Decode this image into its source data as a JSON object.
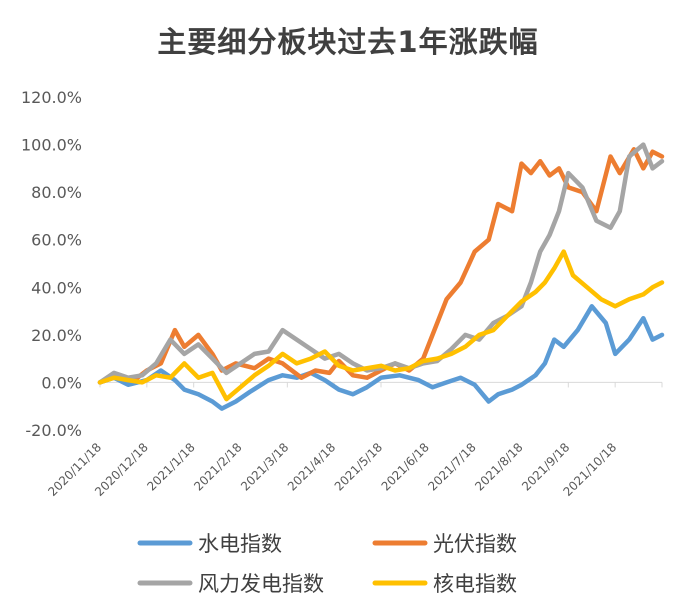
{
  "chart_data": {
    "type": "line",
    "title": "主要细分板块过去1年涨跌幅",
    "xlabel": "",
    "ylabel": "",
    "ylim": [
      -20,
      120
    ],
    "y_ticks": [
      "-20.0%",
      "0.0%",
      "20.0%",
      "40.0%",
      "60.0%",
      "80.0%",
      "100.0%",
      "120.0%"
    ],
    "y_tick_values": [
      -20,
      0,
      20,
      40,
      60,
      80,
      100,
      120
    ],
    "categories": [
      "2020/11/18",
      "2020/12/18",
      "2021/1/18",
      "2021/2/18",
      "2021/3/18",
      "2021/4/18",
      "2021/5/18",
      "2021/6/18",
      "2021/7/18",
      "2021/8/18",
      "2021/9/18",
      "2021/10/18"
    ],
    "x_index_range": [
      0,
      12
    ],
    "legend_position": "bottom",
    "series": [
      {
        "name": "水电指数",
        "color": "#5b9bd5",
        "x": [
          0,
          0.3,
          0.6,
          1.0,
          1.3,
          1.6,
          1.8,
          2.1,
          2.4,
          2.6,
          2.9,
          3.2,
          3.6,
          3.9,
          4.2,
          4.5,
          4.8,
          5.1,
          5.4,
          5.7,
          6.0,
          6.4,
          6.8,
          7.1,
          7.4,
          7.7,
          8.0,
          8.3,
          8.5,
          8.8,
          9.0,
          9.3,
          9.5,
          9.7,
          9.9,
          10.2,
          10.5,
          10.8,
          11.0,
          11.3,
          11.6,
          11.8,
          12.0
        ],
        "values": [
          0,
          2,
          -1,
          1,
          5,
          1,
          -3,
          -5,
          -8,
          -11,
          -8,
          -4,
          1,
          3,
          2,
          4,
          1,
          -3,
          -5,
          -2,
          2,
          3,
          1,
          -2,
          0,
          2,
          -1,
          -8,
          -5,
          -3,
          -1,
          3,
          8,
          18,
          15,
          22,
          32,
          25,
          12,
          18,
          27,
          18,
          20
        ]
      },
      {
        "name": "光伏指数",
        "color": "#ed7d31",
        "x": [
          0,
          0.3,
          0.6,
          0.8,
          1.0,
          1.3,
          1.6,
          1.8,
          2.1,
          2.4,
          2.6,
          2.9,
          3.3,
          3.6,
          3.9,
          4.3,
          4.6,
          4.9,
          5.1,
          5.4,
          5.7,
          6.0,
          6.3,
          6.6,
          6.9,
          7.1,
          7.4,
          7.7,
          8.0,
          8.3,
          8.5,
          8.8,
          9.0,
          9.2,
          9.4,
          9.6,
          9.8,
          10.0,
          10.3,
          10.6,
          10.9,
          11.1,
          11.4,
          11.6,
          11.8,
          12.0
        ],
        "values": [
          0,
          3,
          1,
          2,
          5,
          8,
          22,
          15,
          20,
          12,
          5,
          8,
          6,
          10,
          8,
          2,
          5,
          4,
          9,
          3,
          2,
          5,
          8,
          5,
          10,
          20,
          35,
          42,
          55,
          60,
          75,
          72,
          92,
          88,
          93,
          87,
          90,
          82,
          80,
          72,
          95,
          88,
          98,
          90,
          97,
          95
        ]
      },
      {
        "name": "风力发电指数",
        "color": "#a5a5a5",
        "x": [
          0,
          0.3,
          0.6,
          0.9,
          1.2,
          1.5,
          1.8,
          2.1,
          2.4,
          2.7,
          3.0,
          3.3,
          3.6,
          3.9,
          4.2,
          4.5,
          4.8,
          5.1,
          5.4,
          5.7,
          6.0,
          6.3,
          6.6,
          6.9,
          7.2,
          7.5,
          7.8,
          8.1,
          8.4,
          8.7,
          9.0,
          9.2,
          9.4,
          9.6,
          9.8,
          10.0,
          10.3,
          10.6,
          10.9,
          11.1,
          11.3,
          11.6,
          11.8,
          12.0
        ],
        "values": [
          0,
          4,
          2,
          3,
          8,
          18,
          12,
          16,
          10,
          4,
          8,
          12,
          13,
          22,
          18,
          14,
          10,
          12,
          8,
          5,
          6,
          8,
          6,
          8,
          9,
          14,
          20,
          18,
          25,
          28,
          32,
          42,
          55,
          62,
          72,
          88,
          82,
          68,
          65,
          72,
          95,
          100,
          90,
          93
        ]
      },
      {
        "name": "核电指数",
        "color": "#ffc000",
        "x": [
          0,
          0.3,
          0.6,
          0.9,
          1.2,
          1.5,
          1.8,
          2.1,
          2.4,
          2.7,
          3.0,
          3.3,
          3.6,
          3.9,
          4.2,
          4.5,
          4.8,
          5.1,
          5.4,
          5.7,
          6.0,
          6.3,
          6.6,
          6.9,
          7.2,
          7.5,
          7.8,
          8.1,
          8.4,
          8.7,
          9.0,
          9.3,
          9.5,
          9.7,
          9.9,
          10.1,
          10.4,
          10.7,
          11.0,
          11.3,
          11.6,
          11.8,
          12.0
        ],
        "values": [
          0,
          2,
          1,
          0,
          3,
          2,
          8,
          2,
          4,
          -7,
          -2,
          3,
          7,
          12,
          8,
          10,
          13,
          7,
          5,
          6,
          7,
          5,
          6,
          9,
          10,
          12,
          15,
          20,
          22,
          28,
          34,
          38,
          42,
          48,
          55,
          45,
          40,
          35,
          32,
          35,
          37,
          40,
          42
        ]
      }
    ]
  }
}
